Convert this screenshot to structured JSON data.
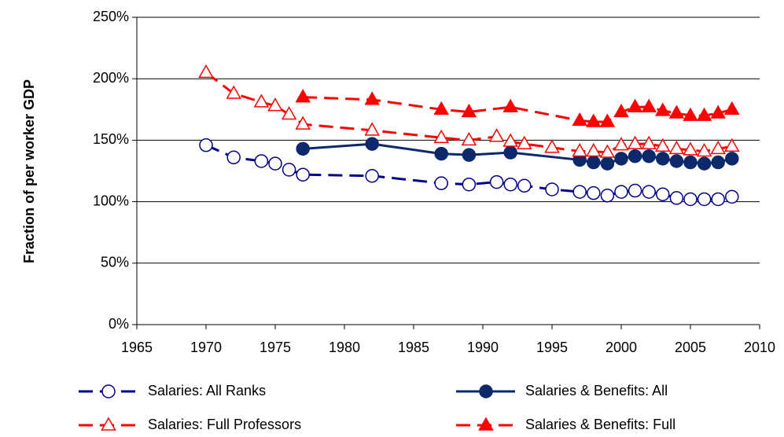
{
  "chart_data": {
    "type": "line",
    "y_label": "Fraction of per worker GDP",
    "xlim": [
      1965,
      2010
    ],
    "xticks": [
      1965,
      1970,
      1975,
      1980,
      1985,
      1990,
      1995,
      2000,
      2005,
      2010
    ],
    "ylim": [
      0,
      250
    ],
    "yticks": [
      {
        "value": 0,
        "label": "0%"
      },
      {
        "value": 50,
        "label": "50%"
      },
      {
        "value": 100,
        "label": "100%"
      },
      {
        "value": 150,
        "label": "150%"
      },
      {
        "value": 200,
        "label": "200%"
      },
      {
        "value": 250,
        "label": "250%"
      }
    ],
    "grid": true,
    "series": [
      {
        "name": "Salaries: All Ranks",
        "color": "#00008b",
        "dashed": true,
        "marker": "circle",
        "filled": false,
        "x": [
          1970,
          1972,
          1974,
          1975,
          1976,
          1977,
          1982,
          1987,
          1989,
          1991,
          1992,
          1993,
          1995,
          1997,
          1998,
          1999,
          2000,
          2001,
          2002,
          2003,
          2004,
          2005,
          2006,
          2007,
          2008
        ],
        "values": [
          146,
          136,
          133,
          131,
          126,
          122,
          121,
          115,
          114,
          116,
          114,
          113,
          110,
          108,
          107,
          105,
          108,
          109,
          108,
          106,
          103,
          102,
          102,
          102,
          104
        ]
      },
      {
        "name": "Salaries & Benefits: All",
        "color": "#0c2a6b",
        "dashed": false,
        "marker": "circle",
        "filled": true,
        "x": [
          1977,
          1982,
          1987,
          1989,
          1992,
          1997,
          1998,
          1999,
          2000,
          2001,
          2002,
          2003,
          2004,
          2005,
          2006,
          2007,
          2008
        ],
        "values": [
          143,
          147,
          139,
          138,
          140,
          134,
          132,
          131,
          135,
          137,
          137,
          135,
          133,
          132,
          131,
          132,
          135
        ]
      },
      {
        "name": "Salaries: Full Professors",
        "color": "#ff0000",
        "dashed": true,
        "marker": "triangle",
        "filled": false,
        "x": [
          1970,
          1972,
          1974,
          1975,
          1976,
          1977,
          1982,
          1987,
          1989,
          1991,
          1992,
          1993,
          1995,
          1997,
          1998,
          1999,
          2000,
          2001,
          2002,
          2003,
          2004,
          2005,
          2006,
          2007,
          2008
        ],
        "values": [
          205,
          188,
          181,
          178,
          171,
          163,
          158,
          152,
          150,
          153,
          149,
          147,
          144,
          141,
          141,
          140,
          146,
          147,
          147,
          145,
          143,
          142,
          141,
          143,
          145
        ]
      },
      {
        "name": "Salaries & Benefits: Full",
        "color": "#ff0000",
        "dashed": true,
        "marker": "triangle",
        "filled": true,
        "x": [
          1977,
          1982,
          1987,
          1989,
          1992,
          1997,
          1998,
          1999,
          2000,
          2001,
          2002,
          2003,
          2004,
          2005,
          2006,
          2007,
          2008
        ],
        "values": [
          185,
          183,
          175,
          173,
          177,
          166,
          165,
          165,
          173,
          177,
          177,
          174,
          172,
          170,
          170,
          172,
          175
        ]
      }
    ]
  }
}
